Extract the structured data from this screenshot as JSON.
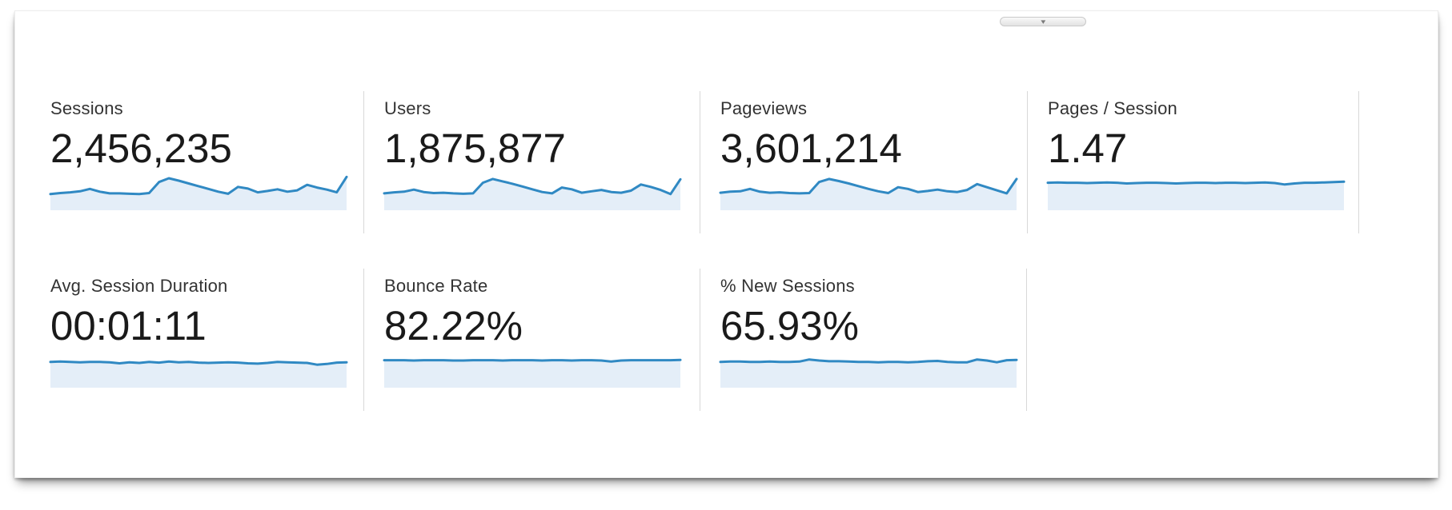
{
  "panel": {
    "collapse_button": {
      "icon": "chevron-down-icon",
      "glyph": "▾"
    }
  },
  "colors": {
    "spark_line": "#3089c3",
    "spark_fill": "#e4eef8",
    "divider": "#d8d8d8",
    "label_text": "#333333",
    "value_text": "#1a1a1a"
  },
  "metrics": [
    {
      "label": "Sessions",
      "value": "2,456,235",
      "sparkline": [
        0.47,
        0.5,
        0.52,
        0.55,
        0.62,
        0.54,
        0.49,
        0.49,
        0.48,
        0.47,
        0.5,
        0.82,
        0.93,
        0.86,
        0.78,
        0.7,
        0.62,
        0.54,
        0.48,
        0.68,
        0.63,
        0.52,
        0.56,
        0.61,
        0.54,
        0.58,
        0.74,
        0.66,
        0.6,
        0.52,
        0.97
      ]
    },
    {
      "label": "Users",
      "value": "1,875,877",
      "sparkline": [
        0.49,
        0.52,
        0.54,
        0.6,
        0.53,
        0.5,
        0.51,
        0.49,
        0.48,
        0.49,
        0.8,
        0.91,
        0.84,
        0.77,
        0.69,
        0.61,
        0.53,
        0.49,
        0.66,
        0.61,
        0.51,
        0.55,
        0.59,
        0.53,
        0.51,
        0.57,
        0.75,
        0.68,
        0.59,
        0.47,
        0.9
      ]
    },
    {
      "label": "Pageviews",
      "value": "3,601,214",
      "sparkline": [
        0.51,
        0.54,
        0.55,
        0.62,
        0.54,
        0.51,
        0.52,
        0.5,
        0.49,
        0.5,
        0.82,
        0.91,
        0.85,
        0.78,
        0.7,
        0.62,
        0.55,
        0.5,
        0.67,
        0.62,
        0.53,
        0.56,
        0.6,
        0.55,
        0.53,
        0.59,
        0.76,
        0.67,
        0.58,
        0.49,
        0.91
      ]
    },
    {
      "label": "Pages / Session",
      "value": "1.47",
      "sparkline": [
        0.8,
        0.81,
        0.8,
        0.8,
        0.79,
        0.8,
        0.81,
        0.8,
        0.78,
        0.79,
        0.8,
        0.8,
        0.79,
        0.78,
        0.79,
        0.8,
        0.8,
        0.79,
        0.8,
        0.8,
        0.79,
        0.8,
        0.81,
        0.79,
        0.75,
        0.78,
        0.8,
        0.8,
        0.81,
        0.82,
        0.83
      ]
    },
    {
      "label": "Avg. Session Duration",
      "value": "00:01:11",
      "sparkline": [
        0.75,
        0.76,
        0.75,
        0.74,
        0.75,
        0.75,
        0.74,
        0.71,
        0.74,
        0.72,
        0.75,
        0.73,
        0.76,
        0.74,
        0.75,
        0.73,
        0.72,
        0.73,
        0.74,
        0.73,
        0.71,
        0.7,
        0.72,
        0.75,
        0.74,
        0.73,
        0.72,
        0.67,
        0.69,
        0.73,
        0.74
      ]
    },
    {
      "label": "Bounce Rate",
      "value": "82.22%",
      "sparkline": [
        0.8,
        0.8,
        0.8,
        0.79,
        0.8,
        0.8,
        0.8,
        0.79,
        0.79,
        0.8,
        0.8,
        0.8,
        0.79,
        0.8,
        0.8,
        0.8,
        0.79,
        0.8,
        0.8,
        0.79,
        0.8,
        0.8,
        0.79,
        0.76,
        0.79,
        0.8,
        0.8,
        0.8,
        0.8,
        0.8,
        0.81
      ]
    },
    {
      "label": "% New Sessions",
      "value": "65.93%",
      "sparkline": [
        0.75,
        0.76,
        0.76,
        0.75,
        0.75,
        0.76,
        0.75,
        0.75,
        0.76,
        0.82,
        0.79,
        0.77,
        0.77,
        0.76,
        0.75,
        0.75,
        0.74,
        0.75,
        0.75,
        0.74,
        0.75,
        0.77,
        0.78,
        0.75,
        0.74,
        0.74,
        0.82,
        0.79,
        0.74,
        0.8,
        0.81
      ]
    }
  ]
}
